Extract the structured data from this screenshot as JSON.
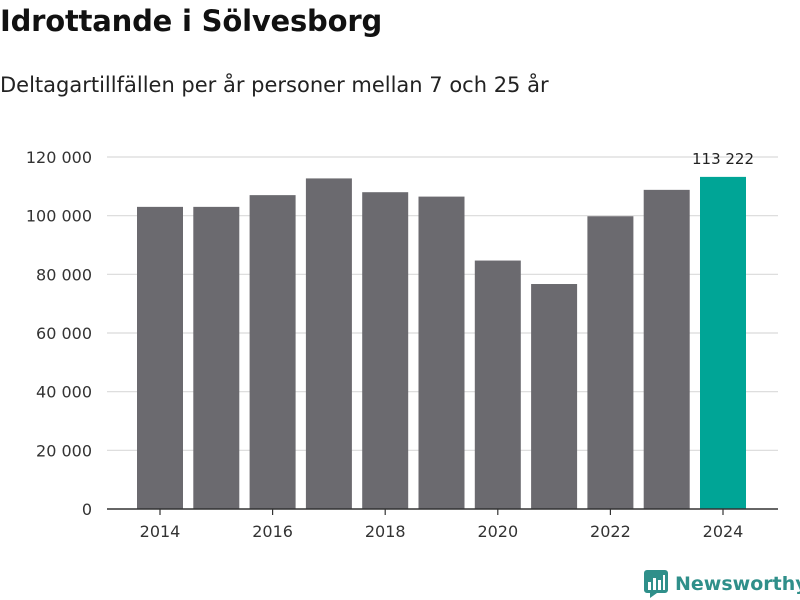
{
  "title": "Idrottande i Sölvesborg",
  "subtitle": "Deltagartillfällen per år personer mellan 7 och 25 år",
  "brand": {
    "name": "Newsworthy",
    "icon": "newsworthy-logo-icon"
  },
  "colors": {
    "bar": "#6b6a6f",
    "highlight": "#00a596",
    "grid": "#d9d9d9",
    "axis": "#333333",
    "brand": "#2f8f8a"
  },
  "chart_data": {
    "type": "bar",
    "title": "Idrottande i Sölvesborg",
    "subtitle": "Deltagartillfällen per år personer mellan 7 och 25 år",
    "xlabel": "",
    "ylabel": "",
    "categories": [
      2014,
      2015,
      2016,
      2017,
      2018,
      2019,
      2020,
      2021,
      2022,
      2023,
      2024
    ],
    "values": [
      103000,
      103000,
      107000,
      112700,
      108000,
      106500,
      84700,
      76700,
      99800,
      108800,
      113222
    ],
    "ylim": [
      0,
      120000
    ],
    "y_ticks": [
      0,
      20000,
      40000,
      60000,
      80000,
      100000,
      120000
    ],
    "y_tick_labels": [
      "0",
      "20 000",
      "40 000",
      "60 000",
      "80 000",
      "100 000",
      "120 000"
    ],
    "x_ticks": [
      2014,
      2016,
      2018,
      2020,
      2022,
      2024
    ],
    "x_tick_labels": [
      "2014",
      "2016",
      "2018",
      "2020",
      "2022",
      "2024"
    ],
    "highlight_index": 10,
    "annotations": [
      {
        "category": 2024,
        "text": "113 222"
      }
    ],
    "grid": true,
    "legend": "none"
  }
}
